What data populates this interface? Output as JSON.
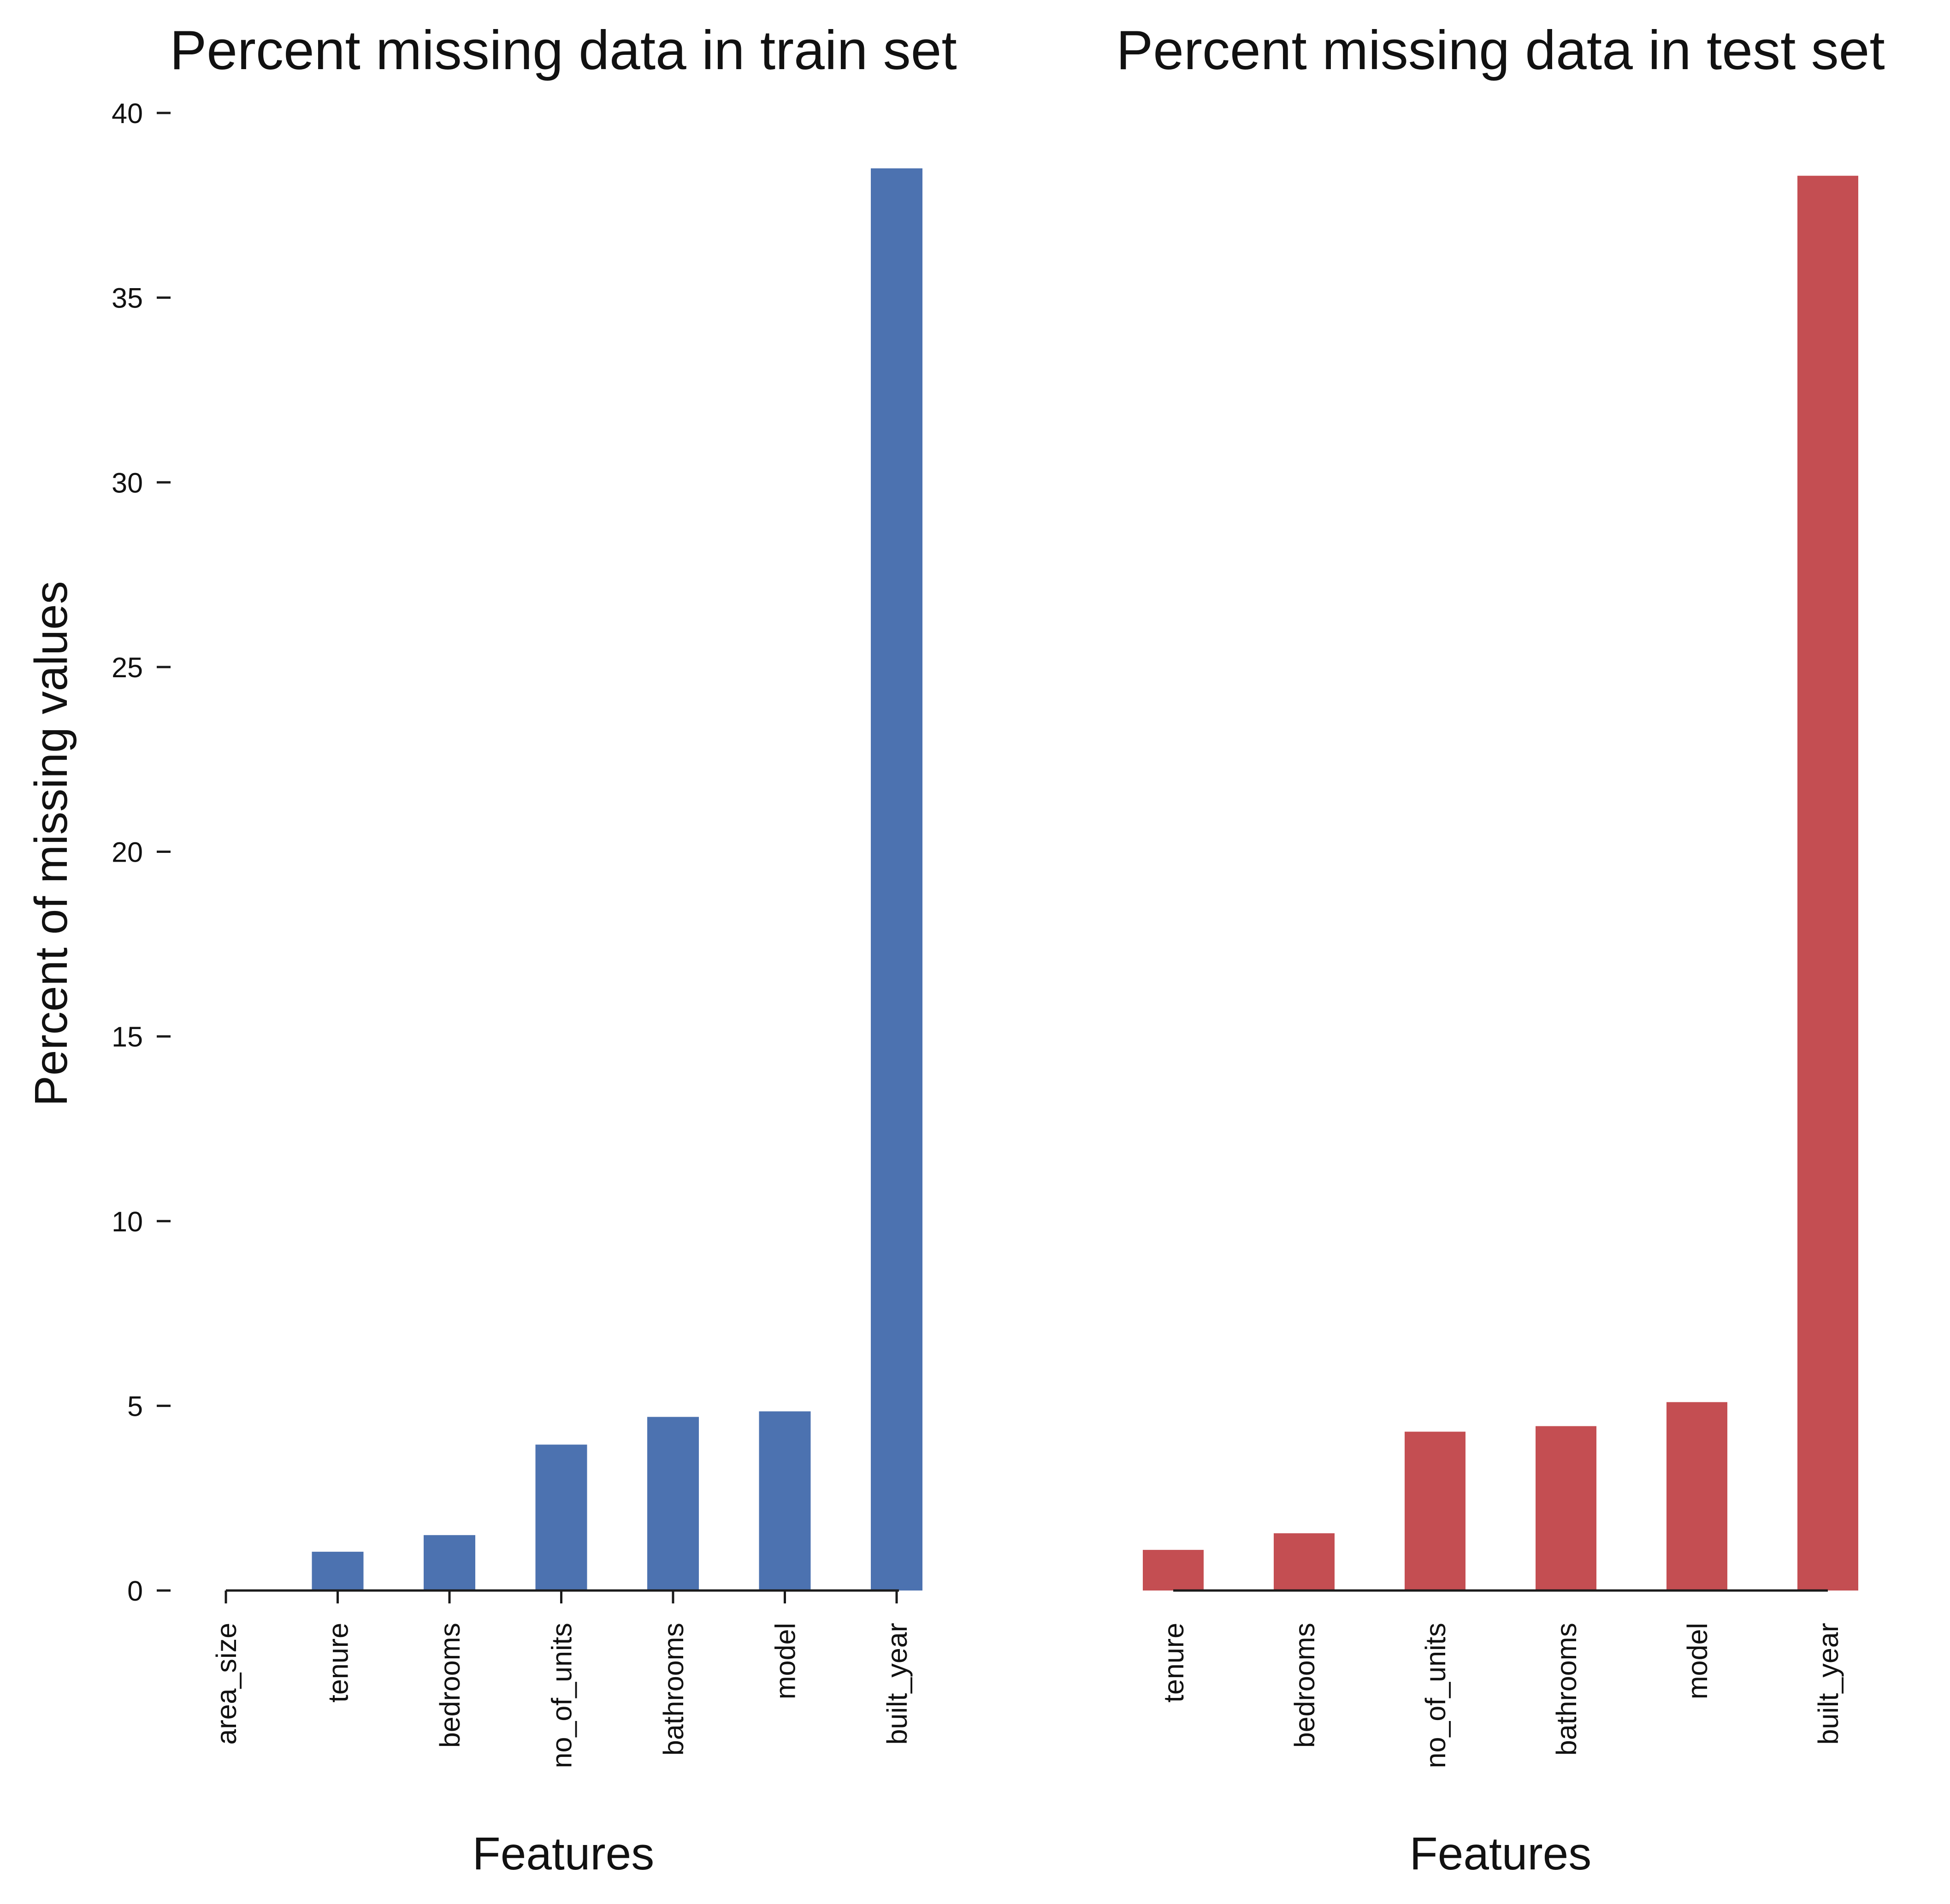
{
  "chart_data": [
    {
      "type": "bar",
      "title": "Percent missing data in train set",
      "xlabel": "Features",
      "ylabel": "Percent of missing values",
      "categories": [
        "area_size",
        "tenure",
        "bedrooms",
        "no_of_units",
        "bathrooms",
        "model",
        "built_year"
      ],
      "values": [
        0.0,
        1.05,
        1.5,
        3.95,
        4.7,
        4.85,
        38.5
      ],
      "ylim": [
        0,
        40
      ],
      "yticks": [
        "0",
        "5",
        "10",
        "15",
        "20",
        "25",
        "30",
        "35",
        "40"
      ],
      "color": "#4c72b0",
      "grid": false
    },
    {
      "type": "bar",
      "title": "Percent missing data in test set",
      "xlabel": "Features",
      "ylabel": "",
      "categories": [
        "tenure",
        "bedrooms",
        "no_of_units",
        "bathrooms",
        "model",
        "built_year"
      ],
      "values": [
        1.1,
        1.55,
        4.3,
        4.45,
        5.1,
        38.3
      ],
      "ylim": [
        0,
        40
      ],
      "color": "#c44e52",
      "grid": false
    }
  ]
}
